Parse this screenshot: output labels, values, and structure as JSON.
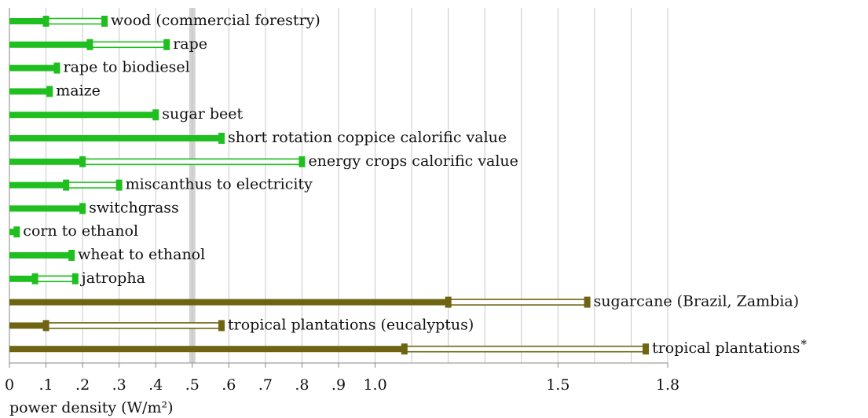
{
  "chart_data": {
    "type": "range_bar",
    "x_label": "power density (W/m²)",
    "categories": [
      "wood (commercial forestry)",
      "rape",
      "rape to biodiesel",
      "maize",
      "sugar beet",
      "short rotation coppice calorific value",
      "energy crops calorific value",
      "miscanthus to electricity",
      "switchgrass",
      "corn to ethanol",
      "wheat to ethanol",
      "jatropha",
      "sugarcane (Brazil, Zambia)",
      "tropical plantations (eucalyptus)",
      "tropical plantations"
    ],
    "low": [
      0.1,
      0.22,
      0.13,
      0.11,
      0.4,
      0.58,
      0.2,
      0.155,
      0.2,
      0.02,
      0.17,
      0.07,
      1.2,
      0.1,
      1.08
    ],
    "high": [
      0.26,
      0.43,
      null,
      null,
      null,
      null,
      0.8,
      0.3,
      null,
      null,
      null,
      0.18,
      1.58,
      0.58,
      1.74
    ],
    "colors": [
      "#1fbf1f",
      "#1fbf1f",
      "#1fbf1f",
      "#1fbf1f",
      "#1fbf1f",
      "#1fbf1f",
      "#1fbf1f",
      "#1fbf1f",
      "#1fbf1f",
      "#1fbf1f",
      "#1fbf1f",
      "#1fbf1f",
      "#6e6412",
      "#6e6412",
      "#6e6412"
    ],
    "annotation": "*",
    "annotation_color": "#cc2222",
    "highlight": 0.5,
    "xlim": [
      0,
      1.8
    ],
    "xticks": [
      0,
      {
        "value": 0.1,
        "label": ".1"
      },
      {
        "value": 0.2,
        "label": ".2"
      },
      {
        "value": 0.3,
        "label": ".3"
      },
      {
        "value": 0.4,
        "label": ".4"
      },
      {
        "value": 0.5,
        "label": ".5"
      },
      {
        "value": 0.6,
        "label": ".6"
      },
      {
        "value": 0.7,
        "label": ".7"
      },
      {
        "value": 0.8,
        "label": ".8"
      },
      {
        "value": 0.9,
        "label": ".9"
      },
      {
        "value": 1.0,
        "label": "1.0"
      },
      1.5,
      1.8
    ],
    "minor_xticks": [
      1.1,
      1.2,
      1.3,
      1.4,
      1.6,
      1.7
    ],
    "grid": true
  }
}
